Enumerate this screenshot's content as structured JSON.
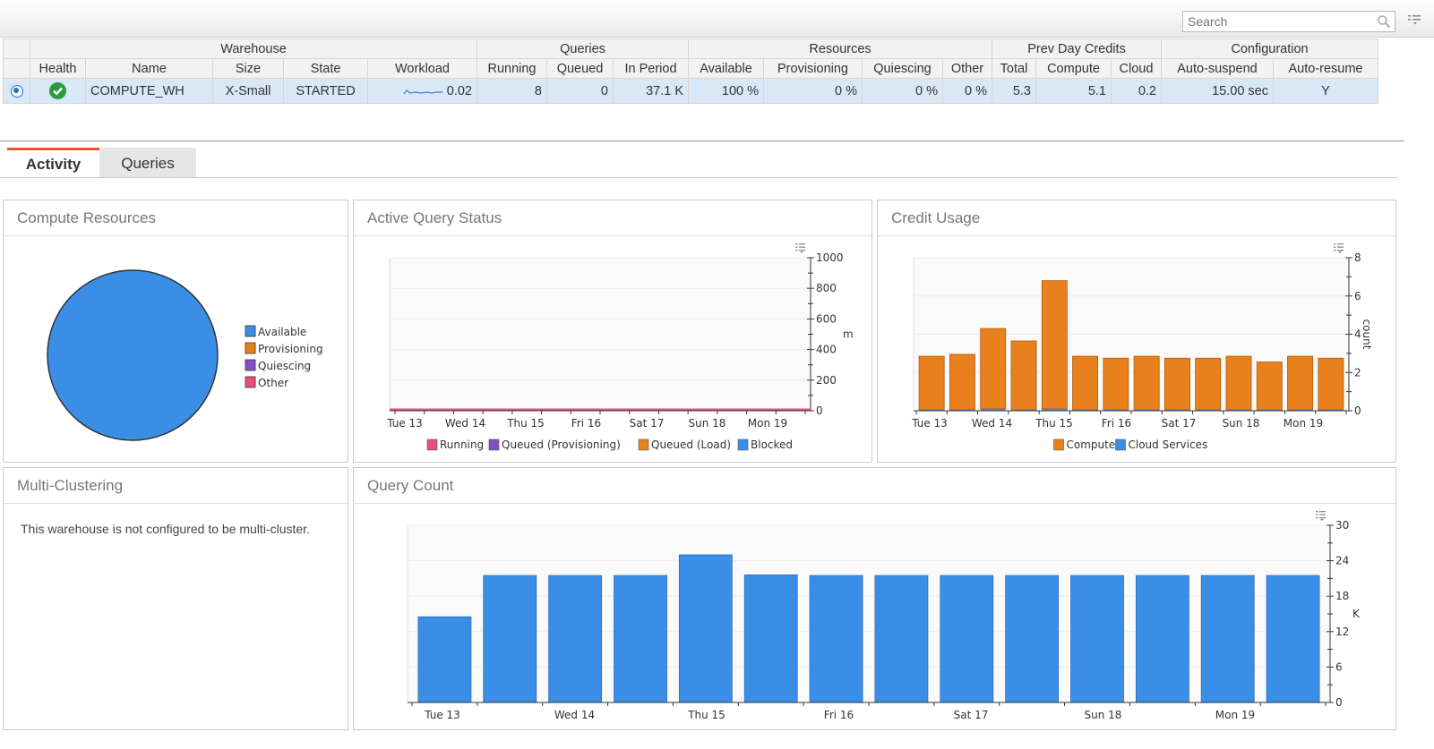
{
  "toolbar": {
    "search_placeholder": "Search"
  },
  "table": {
    "groups": [
      "Warehouse",
      "Queries",
      "Resources",
      "Prev Day Credits",
      "Configuration"
    ],
    "columns": [
      "Health",
      "Name",
      "Size",
      "State",
      "Workload",
      "Running",
      "Queued",
      "In Period",
      "Available",
      "Provisioning",
      "Quiescing",
      "Other",
      "Total",
      "Compute",
      "Cloud",
      "Auto-suspend",
      "Auto-resume"
    ],
    "row": {
      "name": "COMPUTE_WH",
      "size": "X-Small",
      "state": "STARTED",
      "workload": "0.02",
      "running": "8",
      "queued": "0",
      "in_period": "37.1 K",
      "available": "100 %",
      "provisioning": "0 %",
      "quiescing": "0 %",
      "other": "0 %",
      "total": "5.3",
      "compute": "5.1",
      "cloud": "0.2",
      "auto_suspend": "15.00 sec",
      "auto_resume": "Y"
    }
  },
  "tabs": [
    "Activity",
    "Queries"
  ],
  "panels": {
    "compute": "Compute Resources",
    "active": "Active Query Status",
    "credit": "Credit Usage",
    "multi": "Multi-Clustering",
    "count": "Query Count"
  },
  "multi_message": "This warehouse is not configured to be multi-cluster.",
  "colors": {
    "accent": "#e8542c",
    "blue": "#3b8ee6",
    "orange": "#e8801e",
    "purple": "#8050c8",
    "pink": "#e8507a",
    "selected_row": "#d9e8f7"
  },
  "chart_data": [
    {
      "type": "pie",
      "title": "Compute Resources",
      "labels": [
        "Available",
        "Provisioning",
        "Quiescing",
        "Other"
      ],
      "values": [
        100,
        0,
        0,
        0
      ],
      "colors": [
        "#3b8ee6",
        "#e8801e",
        "#8050c8",
        "#e8507a"
      ],
      "legend": "right"
    },
    {
      "type": "area",
      "title": "Active Query Status",
      "categories": [
        "Tue 13",
        "Wed 14",
        "Thu 15",
        "Fri 16",
        "Sat 17",
        "Sun 18",
        "Mon 19"
      ],
      "ylabel": "m",
      "ylim": [
        0,
        1000
      ],
      "yticks": [
        "0",
        "200",
        "400",
        "600",
        "800",
        "1000"
      ],
      "series": [
        {
          "name": "Running",
          "color": "#e8507a"
        },
        {
          "name": "Queued (Provisioning)",
          "color": "#8050c8"
        },
        {
          "name": "Queued (Load)",
          "color": "#e8801e"
        },
        {
          "name": "Blocked",
          "color": "#3b8ee6"
        }
      ],
      "legend": "bottom"
    },
    {
      "type": "bar",
      "title": "Credit Usage",
      "ylabel": "count",
      "ylim": [
        0,
        8
      ],
      "yticks": [
        "0",
        "2",
        "4",
        "6",
        "8"
      ],
      "xticks": [
        "Tue 13",
        "Wed 14",
        "Thu 15",
        "Fri 16",
        "Sat 17",
        "Sun 18",
        "Mon 19"
      ],
      "series": [
        {
          "name": "Compute",
          "color": "#e8801e",
          "values": [
            2.8,
            2.9,
            4.2,
            3.6,
            6.7,
            2.8,
            2.7,
            2.8,
            2.7,
            2.7,
            2.8,
            2.5,
            2.8,
            2.7
          ]
        },
        {
          "name": "Cloud Services",
          "color": "#3b8ee6",
          "values": [
            0.05,
            0.05,
            0.1,
            0.05,
            0.1,
            0.05,
            0.05,
            0.05,
            0.05,
            0.05,
            0.05,
            0.05,
            0.05,
            0.05
          ]
        }
      ],
      "legend": "bottom"
    },
    {
      "type": "bar",
      "title": "Query Count",
      "ylabel": "K",
      "ylim": [
        0,
        30
      ],
      "yticks": [
        "0",
        "6",
        "12",
        "18",
        "24",
        "30"
      ],
      "xticks": [
        "Tue 13",
        "Wed 14",
        "Thu 15",
        "Fri 16",
        "Sat 17",
        "Sun 18",
        "Mon 19"
      ],
      "values": [
        14.5,
        21.5,
        21.5,
        21.5,
        25,
        21.6,
        21.5,
        21.5,
        21.5,
        21.5,
        21.5,
        21.5,
        21.5,
        21.5
      ],
      "color": "#3b8ee6"
    }
  ]
}
